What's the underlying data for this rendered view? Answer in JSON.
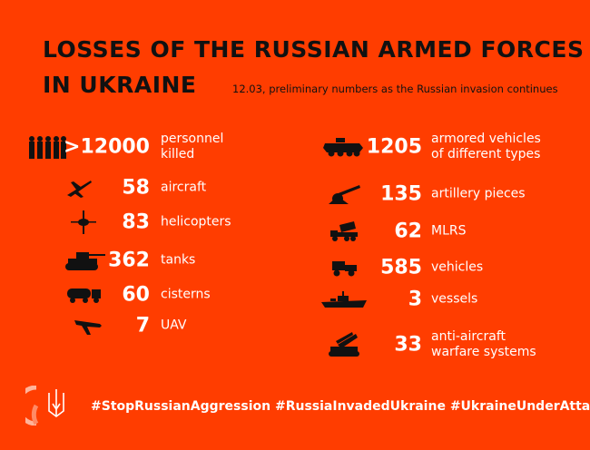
{
  "title_line1": "LOSSES OF THE RUSSIAN ARMED FORCES",
  "title_line2": "IN UKRAINE",
  "subtitle": "12.03, preliminary numbers as the Russian invasion continues",
  "colors": {
    "background": "#ff3d00",
    "text_dark": "#111111",
    "text_light": "#ffffff"
  },
  "left": [
    {
      "icon": "soldiers-icon",
      "value": ">12000",
      "label": [
        "personnel",
        "killed"
      ]
    },
    {
      "icon": "aircraft-icon",
      "value": "58",
      "label": [
        "aircraft"
      ]
    },
    {
      "icon": "helicopter-icon",
      "value": "83",
      "label": [
        "helicopters"
      ]
    },
    {
      "icon": "tank-icon",
      "value": "362",
      "label": [
        "tanks"
      ]
    },
    {
      "icon": "cistern-truck-icon",
      "value": "60",
      "label": [
        "cisterns"
      ]
    },
    {
      "icon": "uav-icon",
      "value": "7",
      "label": [
        "UAV"
      ]
    }
  ],
  "right": [
    {
      "icon": "armored-vehicle-icon",
      "value": "1205",
      "label": [
        "armored vehicles",
        "of different types"
      ]
    },
    {
      "icon": "artillery-icon",
      "value": "135",
      "label": [
        "artillery pieces"
      ]
    },
    {
      "icon": "mlrs-icon",
      "value": "62",
      "label": [
        "MLRS"
      ]
    },
    {
      "icon": "vehicle-icon",
      "value": "585",
      "label": [
        "vehicles"
      ]
    },
    {
      "icon": "vessel-icon",
      "value": "3",
      "label": [
        "vessels"
      ]
    },
    {
      "icon": "anti-aircraft-icon",
      "value": "33",
      "label": [
        "anti-aircraft",
        "warfare systems"
      ]
    }
  ],
  "hashtags": "#StopRussianAggression #RussiaInvadedUkraine #UkraineUnderAttack"
}
